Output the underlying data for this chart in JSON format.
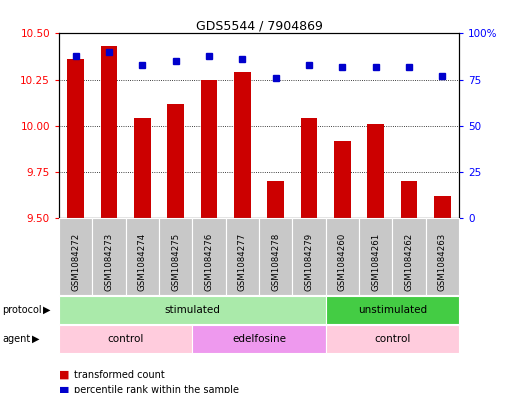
{
  "title": "GDS5544 / 7904869",
  "samples": [
    "GSM1084272",
    "GSM1084273",
    "GSM1084274",
    "GSM1084275",
    "GSM1084276",
    "GSM1084277",
    "GSM1084278",
    "GSM1084279",
    "GSM1084260",
    "GSM1084261",
    "GSM1084262",
    "GSM1084263"
  ],
  "bar_values": [
    10.36,
    10.43,
    10.04,
    10.12,
    10.25,
    10.29,
    9.7,
    10.04,
    9.92,
    10.01,
    9.7,
    9.62
  ],
  "dot_values": [
    88,
    90,
    83,
    85,
    88,
    86,
    76,
    83,
    82,
    82,
    82,
    77
  ],
  "ylim_left": [
    9.5,
    10.5
  ],
  "ylim_right": [
    0,
    100
  ],
  "yticks_left": [
    9.5,
    9.75,
    10.0,
    10.25,
    10.5
  ],
  "yticks_right": [
    0,
    25,
    50,
    75,
    100
  ],
  "ytick_labels_right": [
    "0",
    "25",
    "50",
    "75",
    "100%"
  ],
  "bar_color": "#CC0000",
  "dot_color": "#0000CC",
  "bar_width": 0.5,
  "protocol_groups": [
    {
      "label": "stimulated",
      "start": 0,
      "end": 8,
      "color": "#AAEAAA"
    },
    {
      "label": "unstimulated",
      "start": 8,
      "end": 12,
      "color": "#44CC44"
    }
  ],
  "agent_groups": [
    {
      "label": "control",
      "start": 0,
      "end": 4,
      "color": "#FFCCDD"
    },
    {
      "label": "edelfosine",
      "start": 4,
      "end": 8,
      "color": "#EE99EE"
    },
    {
      "label": "control",
      "start": 8,
      "end": 12,
      "color": "#FFCCDD"
    }
  ],
  "sample_box_color": "#C8C8C8",
  "legend_items": [
    {
      "label": "transformed count",
      "color": "#CC0000"
    },
    {
      "label": "percentile rank within the sample",
      "color": "#0000CC"
    }
  ]
}
